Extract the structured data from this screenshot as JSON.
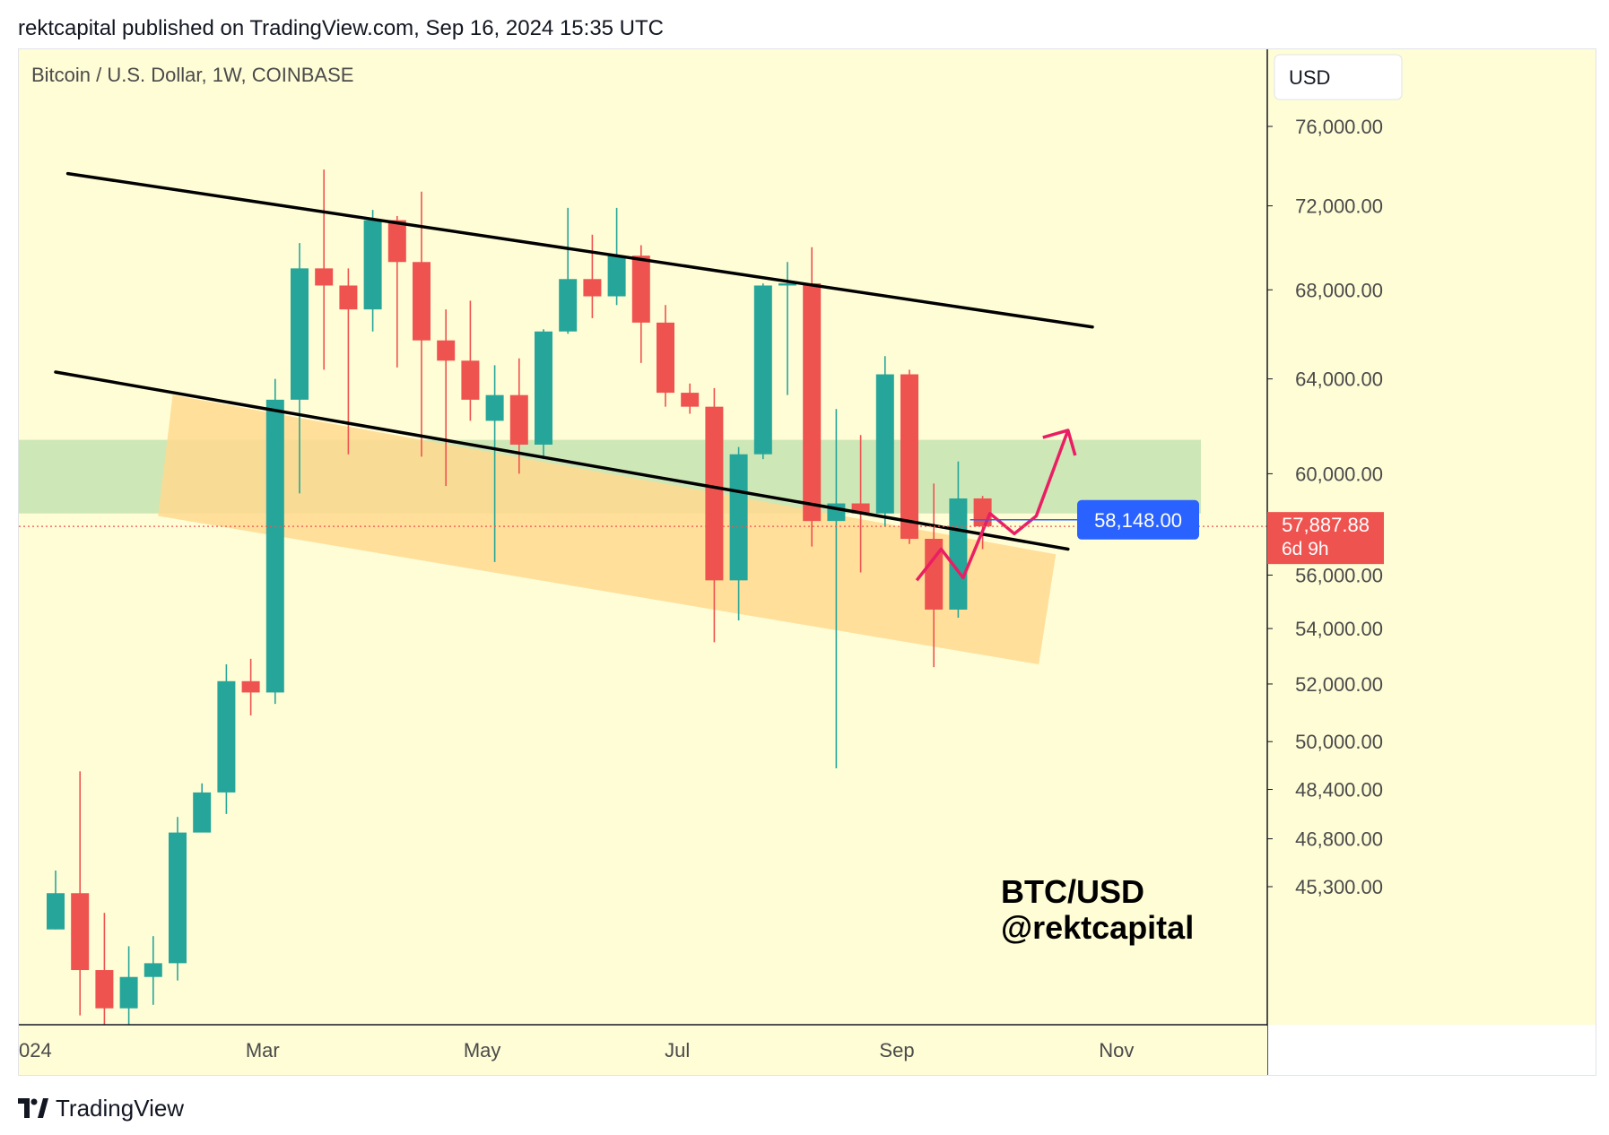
{
  "header": {
    "published_line": "rektcapital published on TradingView.com, Sep 16, 2024 15:35 UTC"
  },
  "chart_title": "Bitcoin / U.S. Dollar, 1W, COINBASE",
  "currency_button": "USD",
  "watermark": {
    "line1": "BTC/USD",
    "line2": "@rektcapital"
  },
  "current_price": {
    "value": "57,887.88",
    "countdown": "6d 9h"
  },
  "marked_level": {
    "value": "58,148.00"
  },
  "footer": {
    "brand": "TradingView"
  },
  "colors": {
    "background": "#fffdd6",
    "up": "#26a69a",
    "down": "#ef5350",
    "green_zone": "#c5e3b2",
    "orange_zone": "#ffd98f",
    "projection": "#e91e63",
    "marker": "#2962ff"
  },
  "chart_data": {
    "type": "candlestick",
    "title": "Bitcoin / U.S. Dollar, 1W, COINBASE",
    "y_axis": {
      "ticks": [
        76000,
        72000,
        68000,
        64000,
        60000,
        56000,
        54000,
        52000,
        50000,
        48400,
        46800,
        45300
      ],
      "tick_labels": [
        "76,000.00",
        "72,000.00",
        "68,000.00",
        "64,000.00",
        "60,000.00",
        "56,000.00",
        "54,000.00",
        "52,000.00",
        "50,000.00",
        "48,400.00",
        "46,800.00",
        "45,300.00"
      ],
      "scale": "log"
    },
    "x_axis": {
      "tick_labels": [
        "024",
        "Mar",
        "May",
        "Jul",
        "Sep",
        "Nov"
      ],
      "tick_week_index": [
        0,
        9,
        18,
        26,
        35,
        44
      ]
    },
    "candles": [
      {
        "o": 44000,
        "h": 45800,
        "l": 44000,
        "c": 45100
      },
      {
        "o": 45100,
        "h": 49000,
        "l": 41500,
        "c": 42800
      },
      {
        "o": 42800,
        "h": 44500,
        "l": 40800,
        "c": 41700
      },
      {
        "o": 41700,
        "h": 43500,
        "l": 41000,
        "c": 42600
      },
      {
        "o": 42600,
        "h": 43800,
        "l": 41800,
        "c": 43000
      },
      {
        "o": 43000,
        "h": 47500,
        "l": 42500,
        "c": 47000
      },
      {
        "o": 47000,
        "h": 48600,
        "l": 47200,
        "c": 48300
      },
      {
        "o": 48300,
        "h": 52700,
        "l": 47600,
        "c": 52100
      },
      {
        "o": 52100,
        "h": 52900,
        "l": 50900,
        "c": 51700
      },
      {
        "o": 51700,
        "h": 64000,
        "l": 51300,
        "c": 63100
      },
      {
        "o": 63100,
        "h": 70200,
        "l": 59200,
        "c": 69000
      },
      {
        "o": 69000,
        "h": 73800,
        "l": 64400,
        "c": 68200
      },
      {
        "o": 68200,
        "h": 69000,
        "l": 60800,
        "c": 67100
      },
      {
        "o": 67100,
        "h": 71800,
        "l": 66100,
        "c": 71300
      },
      {
        "o": 71300,
        "h": 71500,
        "l": 64500,
        "c": 69300
      },
      {
        "o": 69300,
        "h": 72700,
        "l": 60700,
        "c": 65700
      },
      {
        "o": 65700,
        "h": 67100,
        "l": 59500,
        "c": 64800
      },
      {
        "o": 64800,
        "h": 67500,
        "l": 62200,
        "c": 63100
      },
      {
        "o": 62200,
        "h": 64600,
        "l": 56500,
        "c": 63300
      },
      {
        "o": 63300,
        "h": 64900,
        "l": 60000,
        "c": 61200
      },
      {
        "o": 61200,
        "h": 66200,
        "l": 60600,
        "c": 66100
      },
      {
        "o": 66100,
        "h": 71900,
        "l": 66000,
        "c": 68500
      },
      {
        "o": 68500,
        "h": 70600,
        "l": 66700,
        "c": 67700
      },
      {
        "o": 67700,
        "h": 71900,
        "l": 67300,
        "c": 69600
      },
      {
        "o": 69600,
        "h": 70100,
        "l": 64700,
        "c": 66500
      },
      {
        "o": 66500,
        "h": 67300,
        "l": 62800,
        "c": 63400
      },
      {
        "o": 63400,
        "h": 63800,
        "l": 62500,
        "c": 62800
      },
      {
        "o": 62800,
        "h": 63600,
        "l": 53500,
        "c": 55800
      },
      {
        "o": 55800,
        "h": 61100,
        "l": 54300,
        "c": 60800
      },
      {
        "o": 60800,
        "h": 68300,
        "l": 60600,
        "c": 68200
      },
      {
        "o": 68200,
        "h": 69300,
        "l": 63300,
        "c": 68300
      },
      {
        "o": 68300,
        "h": 70000,
        "l": 57100,
        "c": 58100
      },
      {
        "o": 58100,
        "h": 62700,
        "l": 49100,
        "c": 58800
      },
      {
        "o": 58800,
        "h": 61600,
        "l": 56100,
        "c": 58400
      },
      {
        "o": 58400,
        "h": 65000,
        "l": 57900,
        "c": 64200
      },
      {
        "o": 64200,
        "h": 64400,
        "l": 57200,
        "c": 57400
      },
      {
        "o": 57400,
        "h": 59600,
        "l": 52600,
        "c": 54700
      },
      {
        "o": 54700,
        "h": 60500,
        "l": 54400,
        "c": 59000
      },
      {
        "o": 59000,
        "h": 59100,
        "l": 57000,
        "c": 57888
      }
    ],
    "trendlines": [
      {
        "name": "channel-top",
        "from": {
          "w": 0.5,
          "p": 73600
        },
        "to": {
          "w": 42.5,
          "p": 66300
        }
      },
      {
        "name": "channel-bottom",
        "from": {
          "w": 0,
          "p": 64300
        },
        "to": {
          "w": 41.5,
          "p": 57000
        }
      }
    ],
    "zones": [
      {
        "name": "green-zone",
        "x_from_week": 0,
        "x_to_week": 47,
        "p_top": 61400,
        "p_bottom": 58400
      },
      {
        "name": "orange-zone",
        "corners": [
          {
            "w": 4.8,
            "p": 63300
          },
          {
            "w": 41,
            "p": 56800
          },
          {
            "w": 40.3,
            "p": 52700
          },
          {
            "w": 4.2,
            "p": 58300
          }
        ]
      }
    ],
    "projection_path": [
      {
        "w": 35.3,
        "p": 55800
      },
      {
        "w": 36.3,
        "p": 57000
      },
      {
        "w": 37.2,
        "p": 55900
      },
      {
        "w": 38.3,
        "p": 58400
      },
      {
        "w": 39.3,
        "p": 57600
      },
      {
        "w": 40.2,
        "p": 58300
      },
      {
        "w": 41.5,
        "p": 61800
      }
    ],
    "projection_arrow_tip": {
      "w": 41.5,
      "p": 61800
    },
    "marked_price": 58148,
    "current_price": 57887.88
  }
}
